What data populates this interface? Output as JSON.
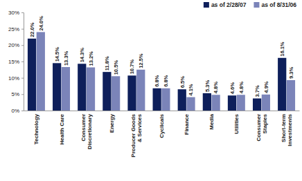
{
  "chart_data": {
    "type": "bar",
    "categories": [
      "Technology",
      "Health Care",
      "Consumer Discretionary",
      "Energy",
      "Producer Goods & Services",
      "Cyclicals",
      "Finance",
      "Media",
      "Utilities",
      "Consumer Staples",
      "Short-term Investments"
    ],
    "series": [
      {
        "name": "as of 2/28/07",
        "color": "#0e1f5b",
        "values": [
          22.0,
          14.5,
          14.3,
          11.8,
          10.7,
          6.8,
          6.5,
          5.3,
          4.6,
          3.7,
          16.1
        ],
        "value_labels": [
          "22.0%",
          "14.5%",
          "14.3%",
          "11.8%",
          "10.7%",
          "6.8%",
          "6.5%",
          "5.3%",
          "4.6%",
          "3.7%",
          "16.1%"
        ]
      },
      {
        "name": "as of 8/31/06",
        "color": "#7b84b9",
        "values": [
          24.0,
          13.3,
          13.2,
          10.5,
          12.5,
          6.8,
          4.1,
          4.8,
          4.8,
          4.9,
          9.3
        ],
        "value_labels": [
          "24.0%",
          "13.3%",
          "13.2%",
          "10.5%",
          "12.5%",
          "6.8%",
          "4.1%",
          "4.8%",
          "4.8%",
          "4.9%",
          "9.3%"
        ]
      }
    ],
    "ylim": [
      0,
      30
    ],
    "yticks": [
      {
        "value": 0,
        "label": "0%"
      },
      {
        "value": 5,
        "label": "5%"
      },
      {
        "value": 10,
        "label": "10%"
      },
      {
        "value": 15,
        "label": "15%"
      },
      {
        "value": 20,
        "label": "20%"
      },
      {
        "value": 25,
        "label": "25%"
      },
      {
        "value": 30,
        "label": "30%"
      }
    ],
    "grid": false,
    "legend": "top-right",
    "data_labels": true
  }
}
